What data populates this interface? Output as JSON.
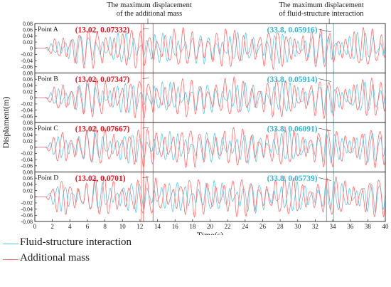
{
  "annotations_top": {
    "additional": "The maximum displacement\nof the additional mass",
    "fsi": "The maximum displacement\nof fluid-structure interaction"
  },
  "colors": {
    "fsi": "#5bc8e6",
    "additional": "#ff6b6b",
    "label_red": "#e0141e",
    "label_cyan": "#2fb6db"
  },
  "legend": {
    "fsi": "Fluid-structure interaction",
    "additional": "Additional mass"
  },
  "chart_data": {
    "type": "line",
    "xlabel": "Time(s)",
    "ylabel": "Displament(m)",
    "xlim": [
      0,
      40
    ],
    "xticks": [
      "0",
      "2",
      "4",
      "6",
      "8",
      "10",
      "12",
      "14",
      "16",
      "18",
      "20",
      "22",
      "24",
      "26",
      "28",
      "30",
      "32",
      "34",
      "36",
      "38",
      "40"
    ],
    "ylim": [
      -0.08,
      0.08
    ],
    "yticks": [
      "0.08",
      "0.06",
      "0.04",
      "0.02",
      "0",
      "-0.02",
      "-0.04",
      "-0.06",
      "-0.08"
    ],
    "series": [
      {
        "name": "Fluid-structure interaction"
      },
      {
        "name": "Additional mass"
      }
    ],
    "panels": [
      {
        "name": "Point A",
        "additional_label": "(13.02, 0.07332)",
        "additional_max": {
          "x": 13.02,
          "y": 0.07332
        },
        "fsi_label": "(33.8, 0.05916)",
        "fsi_max": {
          "x": 33.8,
          "y": 0.05916
        }
      },
      {
        "name": "Point B",
        "additional_label": "(13.02, 0.07347)",
        "additional_max": {
          "x": 13.02,
          "y": 0.07347
        },
        "fsi_label": "(33.8, 0.05914)",
        "fsi_max": {
          "x": 33.8,
          "y": 0.05914
        }
      },
      {
        "name": "Point C",
        "additional_label": "(13.02, 0.07667)",
        "additional_max": {
          "x": 13.02,
          "y": 0.07667
        },
        "fsi_label": "(33.8, 0.06091)",
        "fsi_max": {
          "x": 33.8,
          "y": 0.06091
        }
      },
      {
        "name": "Point D",
        "additional_label": "(13.02, 0.0701)",
        "additional_max": {
          "x": 13.02,
          "y": 0.0701
        },
        "fsi_label": "(33.8, 0.05739)",
        "fsi_max": {
          "x": 33.8,
          "y": 0.05739
        }
      }
    ],
    "grid": false,
    "legend_position": "bottom-left"
  }
}
